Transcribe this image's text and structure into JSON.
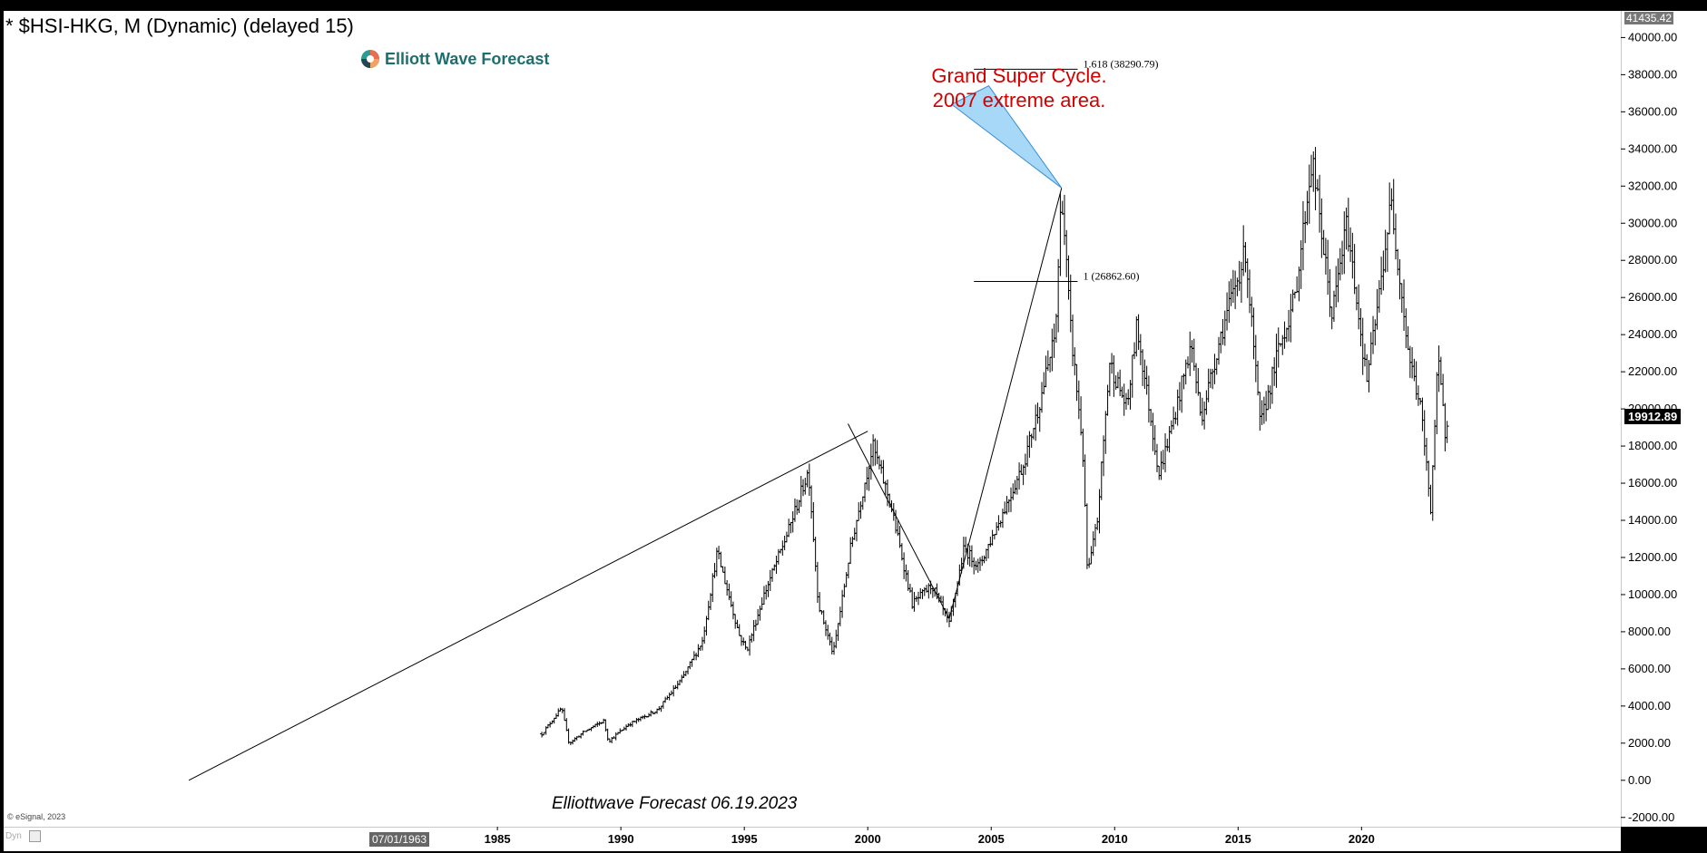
{
  "header": {
    "title": "* $HSI-HKG, M (Dynamic) (delayed 15)",
    "logo_text": "Elliott Wave Forecast",
    "logo_icon": "ewf-logo-icon"
  },
  "annotation": {
    "line1": "Grand Super Cycle.",
    "line2": "2007 extreme area.",
    "color": "#d40000"
  },
  "footer": {
    "watermark": "Elliottwave Forecast  06.19.2023",
    "copyright": "© eSignal, 2023",
    "cursor_date": "07/01/1963",
    "dyn": "Dyn"
  },
  "yaxis": {
    "top_value": "41435.42",
    "last_price": "19912.89"
  },
  "chart_data": {
    "type": "ohlc-bar",
    "symbol": "$HSI-HKG",
    "interval": "M",
    "x_range": [
      1965.0,
      2030.5
    ],
    "y_range": [
      -2500,
      41435.42
    ],
    "y_ticks": [
      -2000,
      0,
      2000,
      4000,
      6000,
      8000,
      10000,
      12000,
      14000,
      16000,
      18000,
      20000,
      22000,
      24000,
      26000,
      28000,
      30000,
      32000,
      34000,
      36000,
      38000,
      40000
    ],
    "y_tick_labels": [
      "-2000.00",
      "0.00",
      "2000.00",
      "4000.00",
      "6000.00",
      "8000.00",
      "10000.00",
      "12000.00",
      "14000.00",
      "16000.00",
      "18000.00",
      "20000.00",
      "22000.00",
      "24000.00",
      "26000.00",
      "28000.00",
      "30000.00",
      "32000.00",
      "34000.00",
      "36000.00",
      "38000.00",
      "40000.00"
    ],
    "x_ticks": [
      1985,
      1990,
      1995,
      2000,
      2005,
      2010,
      2015,
      2020
    ],
    "x_tick_labels": [
      "1985",
      "1990",
      "1995",
      "2000",
      "2005",
      "2010",
      "2015",
      "2020"
    ],
    "last_price": 19912.89,
    "price_path": [
      [
        1986.8,
        2500
      ],
      [
        1987.6,
        3900
      ],
      [
        1987.9,
        2000
      ],
      [
        1988.5,
        2600
      ],
      [
        1989.3,
        3200
      ],
      [
        1989.5,
        2100
      ],
      [
        1990.3,
        3000
      ],
      [
        1991.5,
        3800
      ],
      [
        1992.5,
        5500
      ],
      [
        1993.3,
        7500
      ],
      [
        1993.9,
        12300
      ],
      [
        1994.8,
        7800
      ],
      [
        1995.1,
        7000
      ],
      [
        1995.8,
        10000
      ],
      [
        1996.8,
        13500
      ],
      [
        1997.6,
        16700
      ],
      [
        1998.0,
        9500
      ],
      [
        1998.6,
        6800
      ],
      [
        1999.3,
        12500
      ],
      [
        2000.2,
        18000
      ],
      [
        2000.9,
        15000
      ],
      [
        2001.8,
        9500
      ],
      [
        2002.6,
        10500
      ],
      [
        2003.3,
        8400
      ],
      [
        2003.9,
        12500
      ],
      [
        2004.5,
        11500
      ],
      [
        2005.5,
        14500
      ],
      [
        2006.3,
        17000
      ],
      [
        2006.9,
        20000
      ],
      [
        2007.6,
        24000
      ],
      [
        2007.85,
        31900
      ],
      [
        2008.2,
        24500
      ],
      [
        2008.7,
        18000
      ],
      [
        2008.9,
        11000
      ],
      [
        2009.3,
        14000
      ],
      [
        2009.8,
        22500
      ],
      [
        2010.5,
        20000
      ],
      [
        2010.9,
        24500
      ],
      [
        2011.8,
        16500
      ],
      [
        2012.4,
        19500
      ],
      [
        2013.1,
        23500
      ],
      [
        2013.5,
        19500
      ],
      [
        2014.3,
        24000
      ],
      [
        2015.3,
        28500
      ],
      [
        2015.9,
        19000
      ],
      [
        2016.6,
        23000
      ],
      [
        2017.3,
        26000
      ],
      [
        2018.0,
        33500
      ],
      [
        2018.8,
        25000
      ],
      [
        2019.4,
        30000
      ],
      [
        2019.8,
        26000
      ],
      [
        2020.2,
        21500
      ],
      [
        2020.6,
        25000
      ],
      [
        2021.2,
        31200
      ],
      [
        2021.9,
        23000
      ],
      [
        2022.4,
        20000
      ],
      [
        2022.8,
        14700
      ],
      [
        2023.1,
        22700
      ],
      [
        2023.4,
        18500
      ],
      [
        2023.5,
        19913
      ]
    ],
    "wave_lines": [
      {
        "from": [
          1972.5,
          0
        ],
        "to": [
          2000.0,
          18800
        ]
      },
      {
        "from": [
          1999.2,
          19200
        ],
        "to": [
          2003.3,
          8700
        ]
      },
      {
        "from": [
          2003.3,
          8700
        ],
        "to": [
          2007.85,
          31900
        ]
      }
    ],
    "fib_levels": [
      {
        "label": "1.618 (38290.79)",
        "value": 38290.79,
        "x_from": 2004.3,
        "x_to": 2008.5
      },
      {
        "label": "1 (26862.60)",
        "value": 26862.6,
        "x_from": 2004.3,
        "x_to": 2008.5
      }
    ],
    "target_area": {
      "apex": [
        2007.85,
        31900
      ],
      "a": [
        2003.4,
        36400
      ],
      "b": [
        2004.9,
        37400
      ],
      "color": "#a8d8f8"
    }
  }
}
